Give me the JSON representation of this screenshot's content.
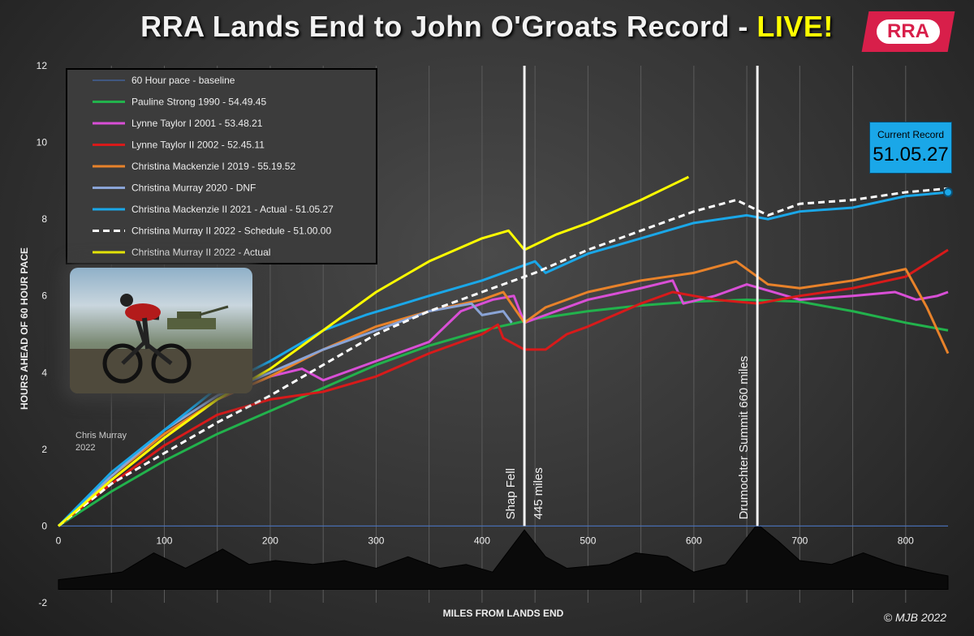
{
  "header": {
    "title_main": "RRA Lands End to John O'Groats Record - ",
    "title_live": "LIVE!",
    "logo_text": "RRA"
  },
  "record_box": {
    "label": "Current Record",
    "value": "51.05.27"
  },
  "photo_caption": {
    "line1": "Chris Murray",
    "line2": "2022"
  },
  "credit": "© MJB 2022",
  "annotations": [
    {
      "line1": "Shap Fell",
      "line2": "445 miles",
      "x": 440
    },
    {
      "line1": "Drumochter Summit 660 miles",
      "line2": "",
      "x": 660
    }
  ],
  "chart_data": {
    "type": "line",
    "xlabel": "MILES FROM LANDS END",
    "ylabel": "HOURS AHEAD OF 60 HOUR PACE",
    "xlim": [
      0,
      840
    ],
    "ylim": [
      -2,
      12
    ],
    "xticks": [
      "0",
      "100",
      "200",
      "300",
      "400",
      "500",
      "600",
      "700",
      "800"
    ],
    "xtick_values": [
      0,
      100,
      200,
      300,
      400,
      500,
      600,
      700,
      800
    ],
    "yticks": [
      "-2",
      "0",
      "2",
      "4",
      "6",
      "8",
      "10",
      "12"
    ],
    "ytick_values": [
      -2,
      0,
      2,
      4,
      6,
      8,
      10,
      12
    ],
    "legend_position": "top-left",
    "series": [
      {
        "name": "60 Hour pace - baseline",
        "color": "#4472c4",
        "style": "solid",
        "points": [
          [
            0,
            0
          ],
          [
            840,
            0
          ]
        ]
      },
      {
        "name": "Pauline Strong 1990 - 54.49.45",
        "color": "#22b24c",
        "style": "solid",
        "points": [
          [
            0,
            0
          ],
          [
            50,
            0.9
          ],
          [
            100,
            1.7
          ],
          [
            150,
            2.4
          ],
          [
            200,
            3.0
          ],
          [
            250,
            3.6
          ],
          [
            300,
            4.2
          ],
          [
            350,
            4.7
          ],
          [
            400,
            5.1
          ],
          [
            450,
            5.4
          ],
          [
            500,
            5.6
          ],
          [
            550,
            5.75
          ],
          [
            600,
            5.85
          ],
          [
            650,
            5.9
          ],
          [
            700,
            5.85
          ],
          [
            750,
            5.6
          ],
          [
            800,
            5.3
          ],
          [
            840,
            5.1
          ]
        ]
      },
      {
        "name": "Lynne Taylor I 2001 - 53.48.21",
        "color": "#d94fd6",
        "style": "solid",
        "points": [
          [
            0,
            0
          ],
          [
            50,
            1.2
          ],
          [
            100,
            2.3
          ],
          [
            150,
            3.3
          ],
          [
            200,
            3.9
          ],
          [
            230,
            4.1
          ],
          [
            250,
            3.8
          ],
          [
            300,
            4.3
          ],
          [
            350,
            4.8
          ],
          [
            380,
            5.6
          ],
          [
            410,
            5.9
          ],
          [
            430,
            6.0
          ],
          [
            440,
            5.3
          ],
          [
            460,
            5.5
          ],
          [
            500,
            5.9
          ],
          [
            550,
            6.2
          ],
          [
            580,
            6.4
          ],
          [
            590,
            5.8
          ],
          [
            620,
            6.0
          ],
          [
            650,
            6.3
          ],
          [
            700,
            5.9
          ],
          [
            750,
            6.0
          ],
          [
            790,
            6.1
          ],
          [
            810,
            5.9
          ],
          [
            830,
            6.0
          ],
          [
            840,
            6.1
          ]
        ]
      },
      {
        "name": "Lynne Taylor II 2002 - 52.45.11",
        "color": "#d81a1a",
        "style": "solid",
        "points": [
          [
            0,
            0
          ],
          [
            50,
            1.1
          ],
          [
            100,
            2.1
          ],
          [
            150,
            2.9
          ],
          [
            200,
            3.3
          ],
          [
            250,
            3.5
          ],
          [
            300,
            3.9
          ],
          [
            350,
            4.5
          ],
          [
            400,
            5.0
          ],
          [
            415,
            5.25
          ],
          [
            420,
            4.9
          ],
          [
            440,
            4.6
          ],
          [
            460,
            4.6
          ],
          [
            480,
            5.0
          ],
          [
            500,
            5.2
          ],
          [
            550,
            5.8
          ],
          [
            580,
            6.1
          ],
          [
            620,
            5.9
          ],
          [
            660,
            5.8
          ],
          [
            700,
            6.0
          ],
          [
            750,
            6.2
          ],
          [
            800,
            6.5
          ],
          [
            840,
            7.2
          ]
        ]
      },
      {
        "name": "Christina Mackenzie I 2019 - 55.19.52",
        "color": "#e8822a",
        "style": "solid",
        "points": [
          [
            0,
            0
          ],
          [
            50,
            1.3
          ],
          [
            100,
            2.4
          ],
          [
            150,
            3.3
          ],
          [
            200,
            3.9
          ],
          [
            250,
            4.6
          ],
          [
            300,
            5.2
          ],
          [
            350,
            5.6
          ],
          [
            400,
            5.9
          ],
          [
            420,
            6.1
          ],
          [
            440,
            5.3
          ],
          [
            460,
            5.7
          ],
          [
            500,
            6.1
          ],
          [
            550,
            6.4
          ],
          [
            600,
            6.6
          ],
          [
            640,
            6.9
          ],
          [
            670,
            6.3
          ],
          [
            700,
            6.2
          ],
          [
            750,
            6.4
          ],
          [
            800,
            6.7
          ],
          [
            820,
            5.7
          ],
          [
            840,
            4.5
          ]
        ]
      },
      {
        "name": "Christina Murray 2020 - DNF",
        "color": "#8aa4d6",
        "style": "solid",
        "points": [
          [
            0,
            0
          ],
          [
            50,
            1.3
          ],
          [
            100,
            2.5
          ],
          [
            150,
            3.4
          ],
          [
            200,
            4.0
          ],
          [
            250,
            4.6
          ],
          [
            300,
            5.1
          ],
          [
            350,
            5.6
          ],
          [
            390,
            5.8
          ],
          [
            400,
            5.5
          ],
          [
            420,
            5.6
          ],
          [
            428,
            5.3
          ]
        ]
      },
      {
        "name": "Christina Mackenzie II 2021 - Actual - 51.05.27",
        "color": "#1aa7e8",
        "style": "solid",
        "points": [
          [
            0,
            0
          ],
          [
            50,
            1.4
          ],
          [
            100,
            2.5
          ],
          [
            150,
            3.6
          ],
          [
            200,
            4.3
          ],
          [
            250,
            5.1
          ],
          [
            290,
            5.5
          ],
          [
            350,
            6.0
          ],
          [
            400,
            6.4
          ],
          [
            450,
            6.9
          ],
          [
            460,
            6.6
          ],
          [
            500,
            7.1
          ],
          [
            550,
            7.5
          ],
          [
            600,
            7.9
          ],
          [
            650,
            8.1
          ],
          [
            670,
            8.0
          ],
          [
            700,
            8.2
          ],
          [
            750,
            8.3
          ],
          [
            800,
            8.6
          ],
          [
            840,
            8.7
          ]
        ]
      },
      {
        "name": "Christina Murray II 2022 - Schedule - 51.00.00",
        "color": "#ffffff",
        "style": "dash",
        "points": [
          [
            0,
            0
          ],
          [
            50,
            1.1
          ],
          [
            100,
            1.9
          ],
          [
            150,
            2.7
          ],
          [
            200,
            3.4
          ],
          [
            250,
            4.2
          ],
          [
            300,
            5.0
          ],
          [
            350,
            5.6
          ],
          [
            400,
            6.1
          ],
          [
            450,
            6.6
          ],
          [
            500,
            7.2
          ],
          [
            550,
            7.7
          ],
          [
            600,
            8.2
          ],
          [
            640,
            8.5
          ],
          [
            670,
            8.1
          ],
          [
            700,
            8.4
          ],
          [
            750,
            8.5
          ],
          [
            800,
            8.7
          ],
          [
            840,
            8.8
          ]
        ]
      },
      {
        "name": "Christina Murray II 2022 - Actual",
        "color": "#ffff00",
        "style": "solid",
        "points": [
          [
            0,
            0
          ],
          [
            50,
            1.2
          ],
          [
            100,
            2.3
          ],
          [
            150,
            3.3
          ],
          [
            200,
            4.1
          ],
          [
            250,
            5.1
          ],
          [
            300,
            6.1
          ],
          [
            350,
            6.9
          ],
          [
            400,
            7.5
          ],
          [
            425,
            7.7
          ],
          [
            440,
            7.2
          ],
          [
            470,
            7.6
          ],
          [
            500,
            7.9
          ],
          [
            550,
            8.5
          ],
          [
            580,
            8.9
          ],
          [
            595,
            9.1
          ]
        ]
      }
    ]
  }
}
